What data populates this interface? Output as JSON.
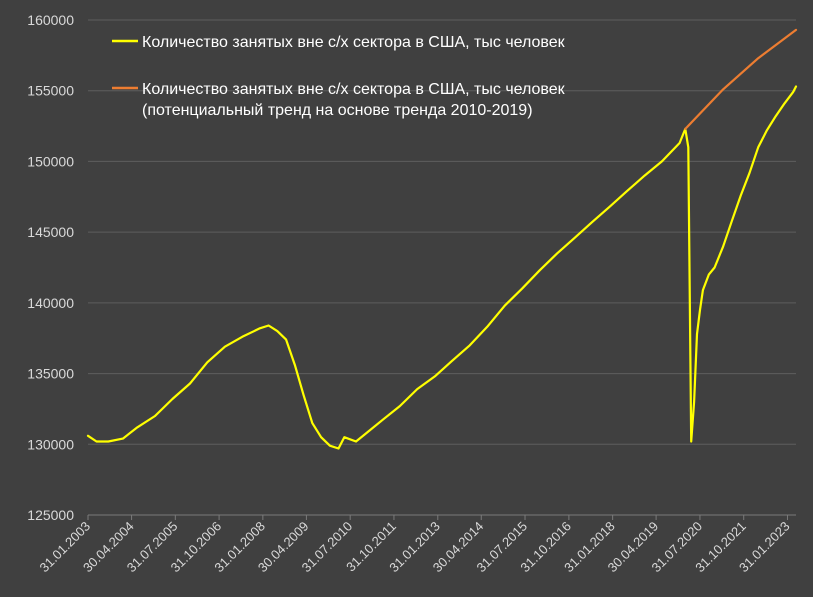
{
  "chart_data": {
    "type": "line",
    "title": "",
    "xlabel": "",
    "ylabel": "",
    "ylim": [
      125000,
      160000
    ],
    "yticks": [
      125000,
      130000,
      135000,
      140000,
      145000,
      150000,
      155000,
      160000
    ],
    "xlim": [
      "2003-01-31",
      "2023-04-30"
    ],
    "xtick_labels": [
      "31.01.2003",
      "30.04.2004",
      "31.07.2005",
      "31.10.2006",
      "31.01.2008",
      "30.04.2009",
      "31.07.2010",
      "31.10.2011",
      "31.01.2013",
      "30.04.2014",
      "31.07.2015",
      "31.10.2016",
      "31.01.2018",
      "30.04.2019",
      "31.07.2020",
      "31.10.2021",
      "31.01.2023"
    ],
    "xtick_dates": [
      "2003-01-31",
      "2004-04-30",
      "2005-07-31",
      "2006-10-31",
      "2008-01-31",
      "2009-04-30",
      "2010-07-31",
      "2011-10-31",
      "2013-01-31",
      "2014-04-30",
      "2015-07-31",
      "2016-10-31",
      "2018-01-31",
      "2019-04-30",
      "2020-07-31",
      "2021-10-31",
      "2023-01-31"
    ],
    "grid": true,
    "legend_position": "top-left",
    "series": [
      {
        "name": "Количество занятых вне с/х сектора в США, тыс человек",
        "color": "#ffff00",
        "points": [
          [
            "2003-01-31",
            130600
          ],
          [
            "2003-04-30",
            130200
          ],
          [
            "2003-08-31",
            130200
          ],
          [
            "2004-01-31",
            130400
          ],
          [
            "2004-06-30",
            131200
          ],
          [
            "2004-12-31",
            132000
          ],
          [
            "2005-06-30",
            133200
          ],
          [
            "2005-12-31",
            134300
          ],
          [
            "2006-06-30",
            135800
          ],
          [
            "2006-12-31",
            136900
          ],
          [
            "2007-06-30",
            137600
          ],
          [
            "2007-12-31",
            138200
          ],
          [
            "2008-03-31",
            138400
          ],
          [
            "2008-06-30",
            138000
          ],
          [
            "2008-09-30",
            137400
          ],
          [
            "2008-12-31",
            135600
          ],
          [
            "2009-03-31",
            133500
          ],
          [
            "2009-06-30",
            131500
          ],
          [
            "2009-09-30",
            130500
          ],
          [
            "2009-12-31",
            129900
          ],
          [
            "2010-03-31",
            129700
          ],
          [
            "2010-05-31",
            130500
          ],
          [
            "2010-09-30",
            130200
          ],
          [
            "2010-12-31",
            130700
          ],
          [
            "2011-06-30",
            131700
          ],
          [
            "2011-12-31",
            132700
          ],
          [
            "2012-06-30",
            133900
          ],
          [
            "2012-12-31",
            134800
          ],
          [
            "2013-06-30",
            135900
          ],
          [
            "2013-12-31",
            137000
          ],
          [
            "2014-06-30",
            138300
          ],
          [
            "2014-12-31",
            139800
          ],
          [
            "2015-06-30",
            141000
          ],
          [
            "2015-12-31",
            142300
          ],
          [
            "2016-06-30",
            143500
          ],
          [
            "2016-12-31",
            144600
          ],
          [
            "2017-06-30",
            145700
          ],
          [
            "2017-12-31",
            146800
          ],
          [
            "2018-06-30",
            147900
          ],
          [
            "2018-12-31",
            149000
          ],
          [
            "2019-06-30",
            150000
          ],
          [
            "2019-12-31",
            151300
          ],
          [
            "2020-02-29",
            152300
          ],
          [
            "2020-03-31",
            151000
          ],
          [
            "2020-04-30",
            130200
          ],
          [
            "2020-05-31",
            133000
          ],
          [
            "2020-06-30",
            137800
          ],
          [
            "2020-07-31",
            139500
          ],
          [
            "2020-08-31",
            140900
          ],
          [
            "2020-10-31",
            142000
          ],
          [
            "2020-12-31",
            142500
          ],
          [
            "2021-03-31",
            144000
          ],
          [
            "2021-06-30",
            145800
          ],
          [
            "2021-09-30",
            147600
          ],
          [
            "2021-12-31",
            149200
          ],
          [
            "2022-03-31",
            151000
          ],
          [
            "2022-06-30",
            152200
          ],
          [
            "2022-09-30",
            153200
          ],
          [
            "2022-12-31",
            154100
          ],
          [
            "2023-03-31",
            154900
          ],
          [
            "2023-04-30",
            155300
          ]
        ]
      },
      {
        "name": "Количество занятых вне с/х сектора в США, тыс человек (потенциальный тренд на основе тренда 2010-2019)",
        "name_line1": "Количество занятых вне с/х сектора в США, тыс человек",
        "name_line2": "(потенциальный тренд на основе тренда 2010-2019)",
        "color": "#ed7d31",
        "points": [
          [
            "2020-02-29",
            152300
          ],
          [
            "2021-03-31",
            155100
          ],
          [
            "2022-03-31",
            157300
          ],
          [
            "2023-04-30",
            159300
          ]
        ]
      }
    ]
  }
}
